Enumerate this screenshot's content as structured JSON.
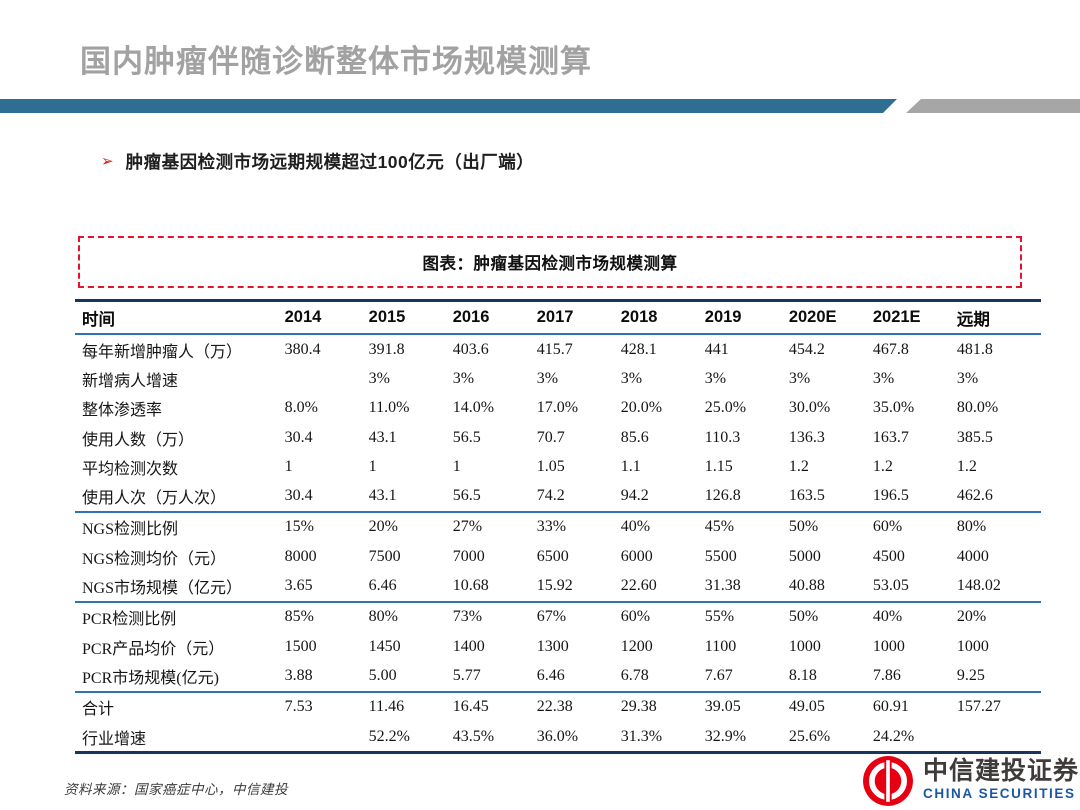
{
  "page": {
    "title": "国内肿瘤伴随诊断整体市场规模测算",
    "bullet_arrow": "➢",
    "bullet": "肿瘤基因检测市场远期规模超过100亿元（出厂端）",
    "figure_title": "图表：肿瘤基因检测市场规模测算",
    "source_note": "资料来源：国家癌症中心，中信建投"
  },
  "logo": {
    "cn": "中信建投证券",
    "en": "CHINA SECURITIES"
  },
  "colors": {
    "title_gray": "#A2A2A2",
    "header_bar_blue": "#2E6E93",
    "header_bar_gray": "#A6A6A6",
    "bullet_red": "#CF1D0F",
    "dashed_border_red": "#E8112D",
    "table_outer_line": "#17365D",
    "table_inner_line": "#2E74B5",
    "logo_red": "#E60012",
    "logo_blue": "#1C57A5"
  },
  "chart_data": {
    "type": "table",
    "title": "图表：肿瘤基因检测市场规模测算",
    "columns": [
      "时间",
      "2014",
      "2015",
      "2016",
      "2017",
      "2018",
      "2019",
      "2020E",
      "2021E",
      "远期"
    ],
    "sections": [
      {
        "rows": [
          {
            "label": "每年新增肿瘤人（万）",
            "values": [
              "380.4",
              "391.8",
              "403.6",
              "415.7",
              "428.1",
              "441",
              "454.2",
              "467.8",
              "481.8"
            ]
          },
          {
            "label": "新增病人增速",
            "values": [
              "",
              "3%",
              "3%",
              "3%",
              "3%",
              "3%",
              "3%",
              "3%",
              "3%"
            ]
          },
          {
            "label": "整体渗透率",
            "values": [
              "8.0%",
              "11.0%",
              "14.0%",
              "17.0%",
              "20.0%",
              "25.0%",
              "30.0%",
              "35.0%",
              "80.0%"
            ]
          },
          {
            "label": "使用人数（万）",
            "values": [
              "30.4",
              "43.1",
              "56.5",
              "70.7",
              "85.6",
              "110.3",
              "136.3",
              "163.7",
              "385.5"
            ]
          },
          {
            "label": "平均检测次数",
            "values": [
              "1",
              "1",
              "1",
              "1.05",
              "1.1",
              "1.15",
              "1.2",
              "1.2",
              "1.2"
            ]
          },
          {
            "label": "使用人次（万人次）",
            "values": [
              "30.4",
              "43.1",
              "56.5",
              "74.2",
              "94.2",
              "126.8",
              "163.5",
              "196.5",
              "462.6"
            ]
          }
        ]
      },
      {
        "rows": [
          {
            "label": "NGS检测比例",
            "values": [
              "15%",
              "20%",
              "27%",
              "33%",
              "40%",
              "45%",
              "50%",
              "60%",
              "80%"
            ]
          },
          {
            "label": "NGS检测均价（元）",
            "values": [
              "8000",
              "7500",
              "7000",
              "6500",
              "6000",
              "5500",
              "5000",
              "4500",
              "4000"
            ]
          },
          {
            "label": "NGS市场规模（亿元）",
            "values": [
              "3.65",
              "6.46",
              "10.68",
              "15.92",
              "22.60",
              "31.38",
              "40.88",
              "53.05",
              "148.02"
            ]
          }
        ]
      },
      {
        "rows": [
          {
            "label": "PCR检测比例",
            "values": [
              "85%",
              "80%",
              "73%",
              "67%",
              "60%",
              "55%",
              "50%",
              "40%",
              "20%"
            ]
          },
          {
            "label": "PCR产品均价（元）",
            "values": [
              "1500",
              "1450",
              "1400",
              "1300",
              "1200",
              "1100",
              "1000",
              "1000",
              "1000"
            ]
          },
          {
            "label": "PCR市场规模(亿元)",
            "values": [
              "3.88",
              "5.00",
              "5.77",
              "6.46",
              "6.78",
              "7.67",
              "8.18",
              "7.86",
              "9.25"
            ]
          }
        ]
      },
      {
        "rows": [
          {
            "label": "合计",
            "values": [
              "7.53",
              "11.46",
              "16.45",
              "22.38",
              "29.38",
              "39.05",
              "49.05",
              "60.91",
              "157.27"
            ]
          },
          {
            "label": "行业增速",
            "values": [
              "",
              "52.2%",
              "43.5%",
              "36.0%",
              "31.3%",
              "32.9%",
              "25.6%",
              "24.2%",
              ""
            ]
          }
        ]
      }
    ]
  }
}
